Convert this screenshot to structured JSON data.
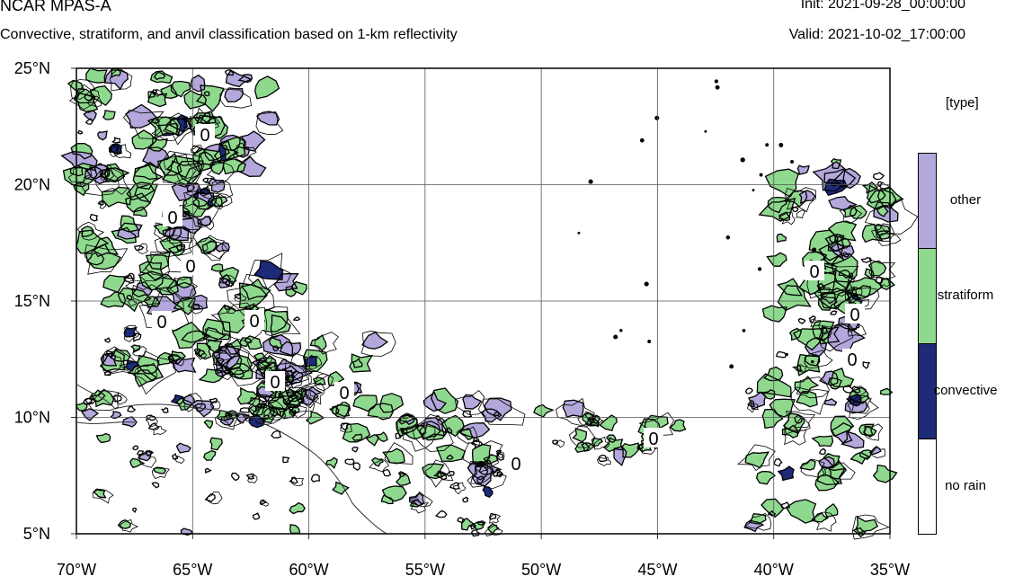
{
  "header": {
    "title": "NCAR MPAS-A",
    "subtitle": "Convective, stratiform, and anvil classification based on 1-km reflectivity",
    "init": "Init: 2021-09-28_00:00:00",
    "valid": "Valid: 2021-10-02_17:00:00"
  },
  "map": {
    "lon_labels": [
      "70°W",
      "65°W",
      "60°W",
      "55°W",
      "50°W",
      "45°W",
      "40°W",
      "35°W"
    ],
    "lat_labels": [
      "25°N",
      "20°N",
      "15°N",
      "10°N",
      "5°N"
    ],
    "contour_label": "0"
  },
  "legend": {
    "title": "[type]",
    "items": [
      {
        "label": "other",
        "color": "#b3a7db"
      },
      {
        "label": "stratiform",
        "color": "#8fd98f"
      },
      {
        "label": "convective",
        "color": "#1d2a78"
      },
      {
        "label": "no rain",
        "color": "#ffffff"
      }
    ]
  }
}
